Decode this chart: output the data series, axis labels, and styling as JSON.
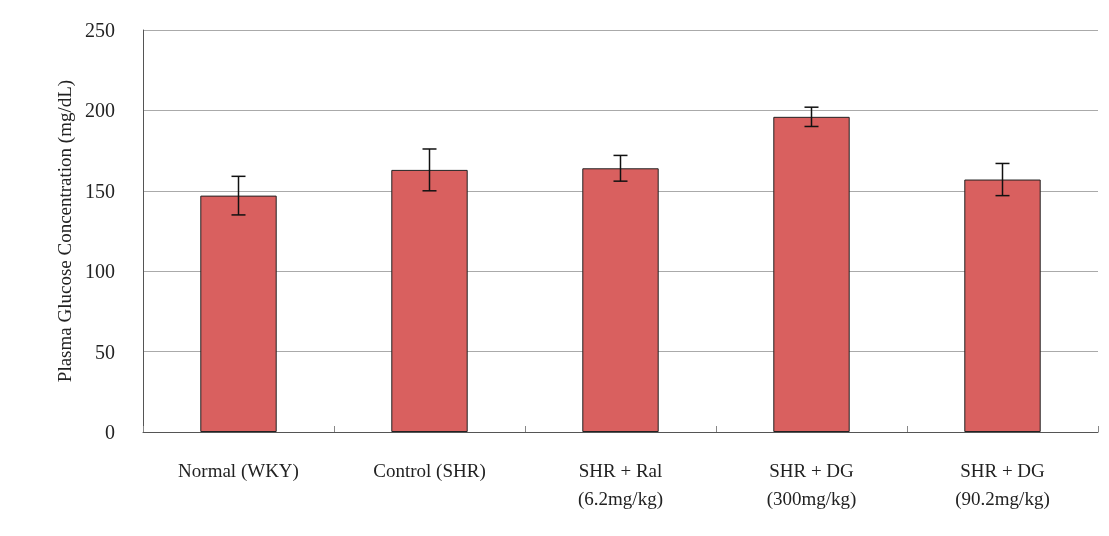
{
  "chart_data": {
    "type": "bar",
    "ylabel": "Plasma Glucose Concentration (mg/dL)",
    "categories": [
      "Normal (WKY)",
      "Control (SHR)",
      "SHR + Ral\n(6.2mg/kg)",
      "SHR + DG\n(300mg/kg)",
      "SHR + DG\n(90.2mg/kg)"
    ],
    "values": [
      147,
      163,
      164,
      196,
      157
    ],
    "errors": [
      12,
      13,
      8,
      6,
      10
    ],
    "color": "#d9605f",
    "ylim": [
      0,
      250
    ],
    "yticks": [
      0,
      50,
      100,
      150,
      200,
      250
    ],
    "grid": "y"
  }
}
